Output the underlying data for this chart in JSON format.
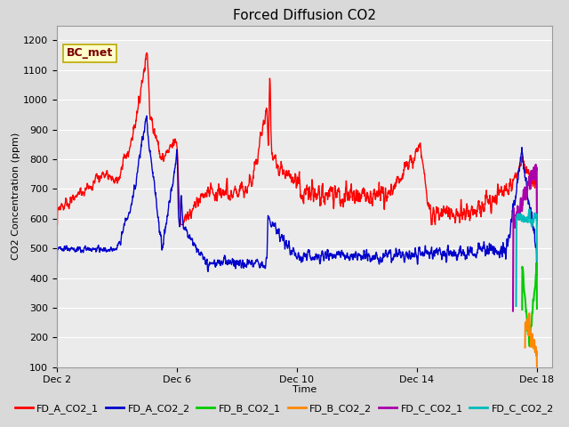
{
  "title": "Forced Diffusion CO2",
  "xlabel": "Time",
  "ylabel": "CO2 Concentration (ppm)",
  "ylim": [
    100,
    1250
  ],
  "yticks": [
    100,
    200,
    300,
    400,
    500,
    600,
    700,
    800,
    900,
    1000,
    1100,
    1200
  ],
  "xlim_start": 2.0,
  "xlim_end": 18.5,
  "xtick_days": [
    2,
    6,
    10,
    14,
    18
  ],
  "xtick_labels": [
    "Dec 2",
    "Dec 6",
    "Dec 10",
    "Dec 14",
    "Dec 18"
  ],
  "annotation_text": "BC_met",
  "series": [
    {
      "name": "FD_A_CO2_1",
      "color": "#ff0000",
      "lw": 1.0
    },
    {
      "name": "FD_A_CO2_2",
      "color": "#0000cc",
      "lw": 1.0
    },
    {
      "name": "FD_B_CO2_1",
      "color": "#00cc00",
      "lw": 1.5
    },
    {
      "name": "FD_B_CO2_2",
      "color": "#ff8800",
      "lw": 1.5
    },
    {
      "name": "FD_C_CO2_1",
      "color": "#aa00aa",
      "lw": 1.5
    },
    {
      "name": "FD_C_CO2_2",
      "color": "#00bbbb",
      "lw": 1.5
    }
  ],
  "bg_color": "#d9d9d9",
  "plot_bg": "#ebebeb",
  "grid_color": "#ffffff",
  "title_fontsize": 11,
  "axis_fontsize": 8,
  "tick_fontsize": 8,
  "legend_fontsize": 8
}
